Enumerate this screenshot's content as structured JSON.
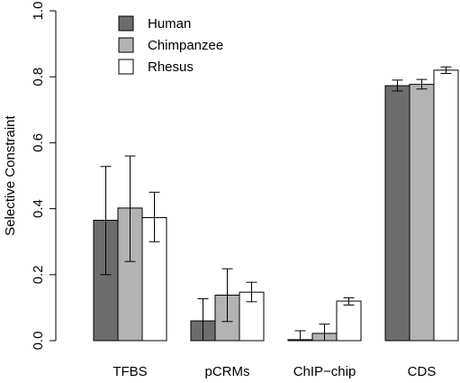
{
  "chart_data": {
    "type": "bar",
    "title": "",
    "xlabel": "",
    "ylabel": "Selective Constraint",
    "ylim": [
      0,
      1.0
    ],
    "yticks": [
      "0.0",
      "0.2",
      "0.4",
      "0.6",
      "0.8",
      "1.0"
    ],
    "grid": false,
    "legend_position": "top-left",
    "categories": [
      "TFBS",
      "pCRMs",
      "ChIP−chip",
      "CDS"
    ],
    "series": [
      {
        "name": "Human",
        "color": "#6d6d6d",
        "values": [
          0.365,
          0.06,
          0.003,
          0.773
        ],
        "error_low": [
          0.2,
          0.0,
          0.0,
          0.757
        ],
        "error_high": [
          0.528,
          0.127,
          0.03,
          0.79
        ]
      },
      {
        "name": "Chimpanzee",
        "color": "#b3b3b3",
        "values": [
          0.402,
          0.138,
          0.022,
          0.777
        ],
        "error_low": [
          0.24,
          0.058,
          0.0,
          0.763
        ],
        "error_high": [
          0.56,
          0.218,
          0.05,
          0.792
        ]
      },
      {
        "name": "Rhesus",
        "color": "#ffffff",
        "values": [
          0.373,
          0.147,
          0.12,
          0.82
        ],
        "error_low": [
          0.3,
          0.118,
          0.108,
          0.81
        ],
        "error_high": [
          0.45,
          0.177,
          0.13,
          0.83
        ]
      }
    ]
  }
}
